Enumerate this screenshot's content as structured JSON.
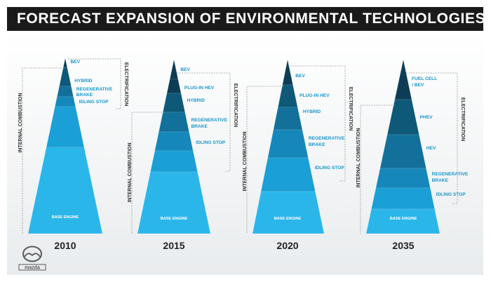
{
  "title": "FORECAST EXPANSION OF ENVIRONMENTAL TECHNOLOGIES",
  "logo_text": "mazda",
  "colors": {
    "title_bg": "#1a1a1a",
    "tier_colors": [
      "#0c3d55",
      "#0e5878",
      "#12709a",
      "#1587ba",
      "#1a9fd6",
      "#2bb6ea"
    ],
    "label_color": "#1797cc",
    "bracket_color": "#9a9a9a",
    "base_label_color": "#ffffff",
    "year_color": "#222222"
  },
  "side_labels": {
    "left": "INTERNAL COMBUSTION",
    "right": "ELECTRIFICATION"
  },
  "pyramids": [
    {
      "year": "2010",
      "layers": [
        {
          "label": "BEV"
        },
        {
          "label": "HYBRID"
        },
        {
          "label": "REGENERATIVE BRAKE"
        },
        {
          "label": "IDLING STOP"
        },
        {
          "label": ""
        },
        {
          "label": "BASE ENGINE"
        }
      ]
    },
    {
      "year": "2015",
      "layers": [
        {
          "label": "BEV"
        },
        {
          "label": "PLUG-IN HEV"
        },
        {
          "label": "HYBRID"
        },
        {
          "label": "REGENERATIVE BRAKE"
        },
        {
          "label": "IDLING STOP"
        },
        {
          "label": ""
        },
        {
          "label": "BASE ENGINE"
        }
      ]
    },
    {
      "year": "2020",
      "layers": [
        {
          "label": "BEV"
        },
        {
          "label": "PLUG-IN HEV"
        },
        {
          "label": "HYBRID"
        },
        {
          "label": "REGENERATIVE BRAKE"
        },
        {
          "label": "IDLING STOP"
        },
        {
          "label": "BASE ENGINE"
        }
      ]
    },
    {
      "year": "2035",
      "layers": [
        {
          "label": "FUEL CELL / BEV"
        },
        {
          "label": "PHEV"
        },
        {
          "label": "HEV"
        },
        {
          "label": "REGENERATIVE BRAKE"
        },
        {
          "label": "IDLING STOP"
        },
        {
          "label": "BASE ENGINE"
        }
      ]
    }
  ]
}
